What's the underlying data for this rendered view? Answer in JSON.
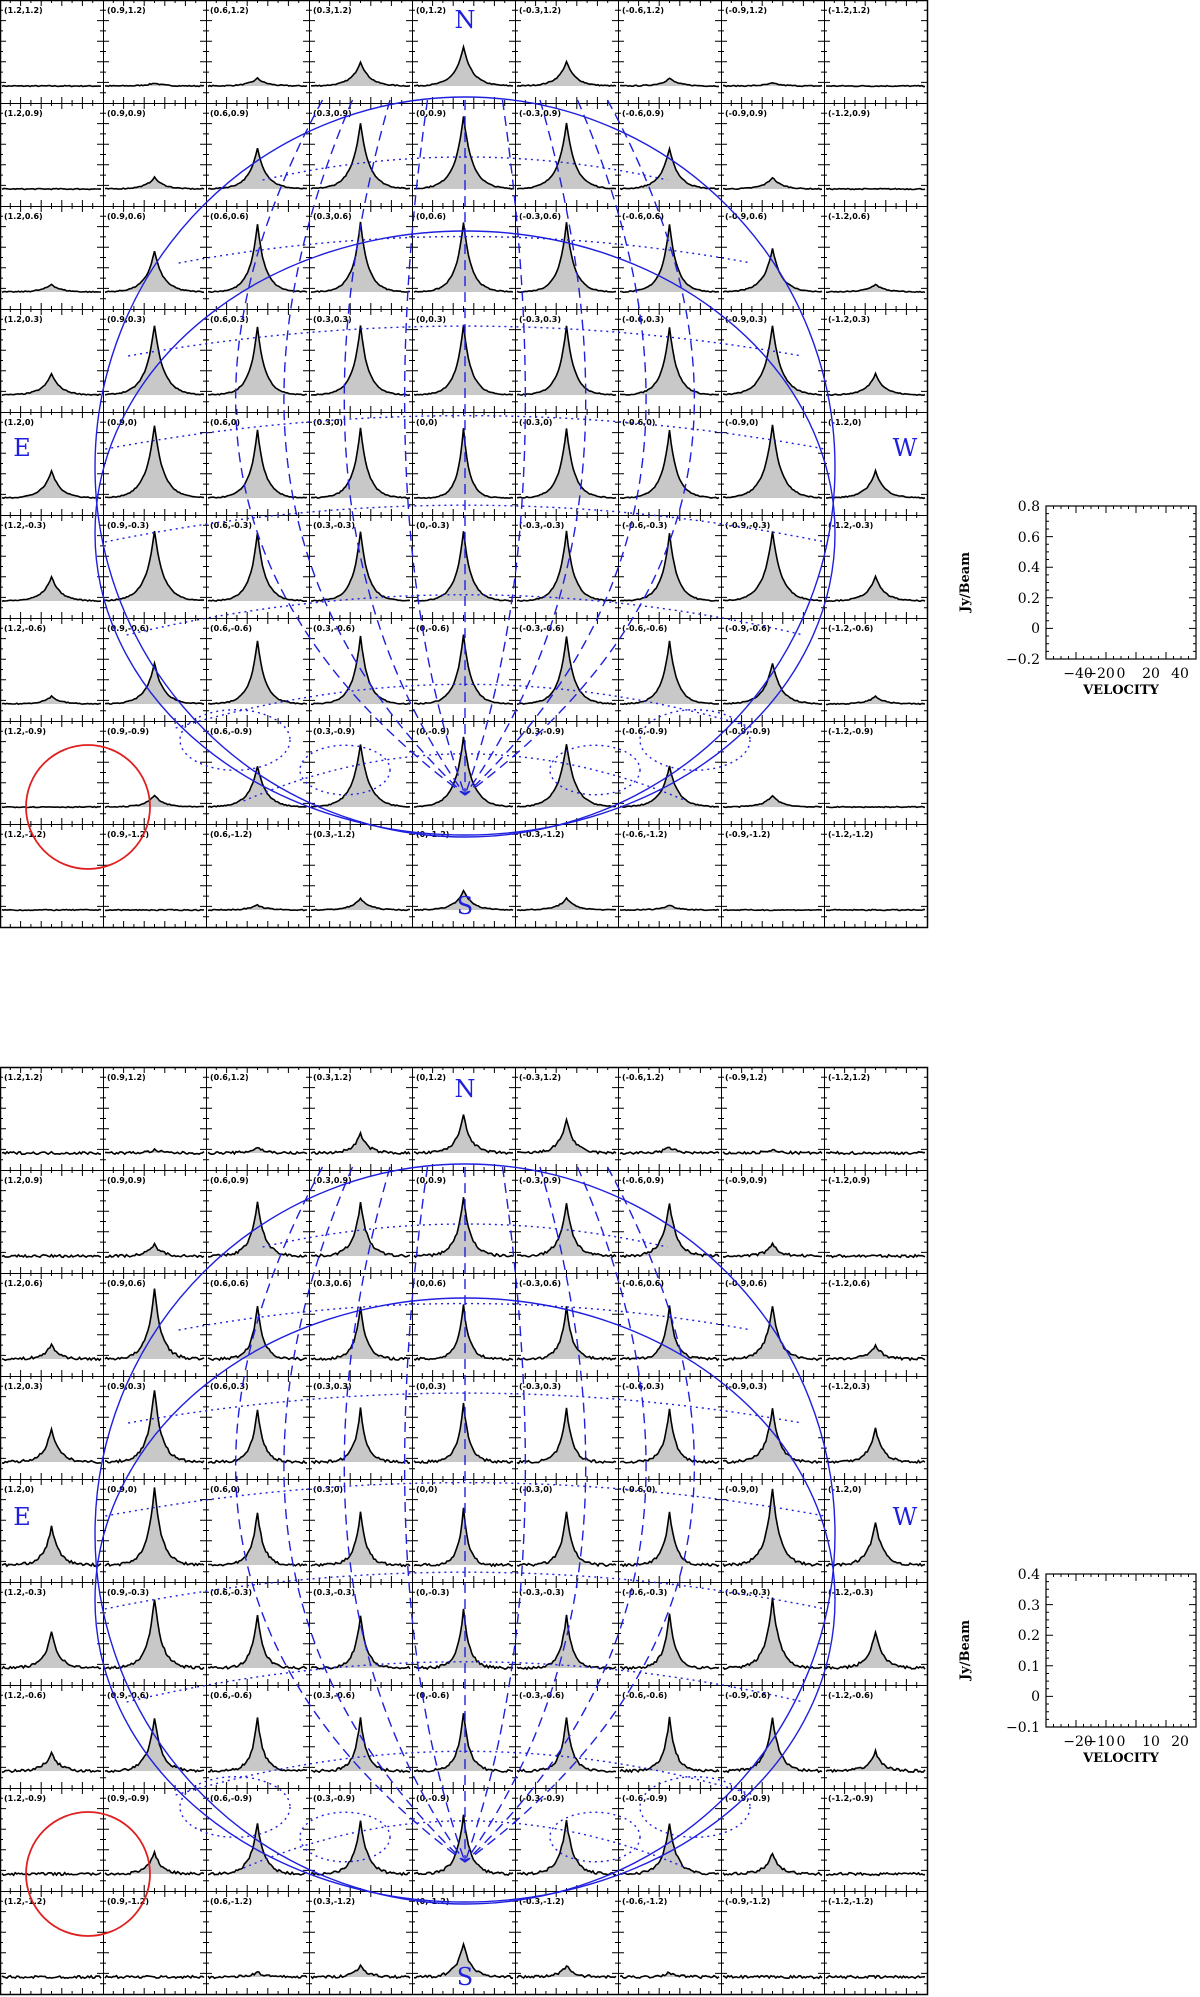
{
  "chart_data": [
    {
      "type": "line",
      "panel": "top",
      "grid_x_offsets": [
        "1.2",
        "0.9",
        "0.6",
        "0.3",
        "0",
        "-0.3",
        "-0.6",
        "-0.9",
        "-1.2"
      ],
      "grid_y_offsets": [
        "1.2",
        "0.9",
        "0.6",
        "0.3",
        "0",
        "-0.3",
        "-0.6",
        "-0.9",
        "-1.2"
      ],
      "compass": {
        "north": "N",
        "south": "S",
        "east": "E",
        "west": "W"
      },
      "key_plot": {
        "xlabel": "VELOCITY",
        "ylabel": "Jy/Beam",
        "xticks": [
          "−40",
          "−20",
          "0",
          "20",
          "40"
        ],
        "yticks": [
          "0.8",
          "0.6",
          "0.4",
          "0.2",
          "0",
          "−0.2"
        ],
        "xlim": [
          -55,
          55
        ],
        "ylim": [
          -0.2,
          0.8
        ]
      },
      "spectra_peaks": [
        [
          0.0,
          0.03,
          0.08,
          0.25,
          0.4,
          0.25,
          0.08,
          0.03,
          0.0
        ],
        [
          0.0,
          0.12,
          0.42,
          0.68,
          0.75,
          0.68,
          0.42,
          0.12,
          0.0
        ],
        [
          0.08,
          0.42,
          0.7,
          0.72,
          0.72,
          0.72,
          0.7,
          0.45,
          0.08
        ],
        [
          0.22,
          0.72,
          0.7,
          0.72,
          0.72,
          0.72,
          0.7,
          0.72,
          0.22
        ],
        [
          0.28,
          0.75,
          0.7,
          0.72,
          0.72,
          0.72,
          0.7,
          0.75,
          0.28
        ],
        [
          0.25,
          0.72,
          0.7,
          0.72,
          0.72,
          0.72,
          0.7,
          0.72,
          0.25
        ],
        [
          0.08,
          0.42,
          0.65,
          0.7,
          0.72,
          0.7,
          0.65,
          0.42,
          0.08
        ],
        [
          0.0,
          0.12,
          0.42,
          0.65,
          0.72,
          0.65,
          0.42,
          0.12,
          0.0
        ],
        [
          0.0,
          0.0,
          0.05,
          0.12,
          0.2,
          0.12,
          0.05,
          0.0,
          0.0
        ]
      ],
      "spectra_widths": [
        0.22,
        0.28,
        0.32
      ],
      "noise": 0.012
    },
    {
      "type": "line",
      "panel": "bottom",
      "grid_x_offsets": [
        "1.2",
        "0.9",
        "0.6",
        "0.3",
        "0",
        "-0.3",
        "-0.6",
        "-0.9",
        "-1.2"
      ],
      "grid_y_offsets": [
        "1.2",
        "0.9",
        "0.6",
        "0.3",
        "0",
        "-0.3",
        "-0.6",
        "-0.9",
        "-1.2"
      ],
      "compass": {
        "north": "N",
        "south": "S",
        "east": "E",
        "west": "W"
      },
      "key_plot": {
        "xlabel": "VELOCITY",
        "ylabel": "Jy/Beam",
        "xticks": [
          "−20",
          "−10",
          "0",
          "10",
          "20"
        ],
        "yticks": [
          "0.4",
          "0.3",
          "0.2",
          "0.1",
          "0",
          "−0.1"
        ],
        "xlim": [
          -27,
          27
        ],
        "ylim": [
          -0.1,
          0.4
        ]
      },
      "spectra_peaks": [
        [
          0.0,
          0.03,
          0.06,
          0.2,
          0.4,
          0.35,
          0.06,
          0.03,
          0.0
        ],
        [
          0.0,
          0.12,
          0.55,
          0.55,
          0.6,
          0.55,
          0.55,
          0.12,
          0.0
        ],
        [
          0.15,
          0.72,
          0.55,
          0.55,
          0.55,
          0.55,
          0.55,
          0.55,
          0.15
        ],
        [
          0.35,
          0.75,
          0.55,
          0.55,
          0.6,
          0.55,
          0.55,
          0.55,
          0.35
        ],
        [
          0.4,
          0.8,
          0.55,
          0.55,
          0.6,
          0.55,
          0.55,
          0.8,
          0.45
        ],
        [
          0.38,
          0.72,
          0.55,
          0.55,
          0.6,
          0.55,
          0.55,
          0.72,
          0.38
        ],
        [
          0.2,
          0.55,
          0.55,
          0.55,
          0.6,
          0.55,
          0.55,
          0.55,
          0.2
        ],
        [
          0.0,
          0.22,
          0.52,
          0.55,
          0.6,
          0.55,
          0.52,
          0.22,
          0.0
        ],
        [
          0.0,
          0.0,
          0.05,
          0.12,
          0.35,
          0.12,
          0.05,
          0.0,
          0.0
        ]
      ],
      "spectra_widths": [
        0.18,
        0.22,
        0.26
      ],
      "noise": 0.03
    }
  ],
  "colors": {
    "axes": "#000000",
    "fill": "#c8c8c8",
    "overlay": "#1f1fe0",
    "beam": "#e02020"
  }
}
